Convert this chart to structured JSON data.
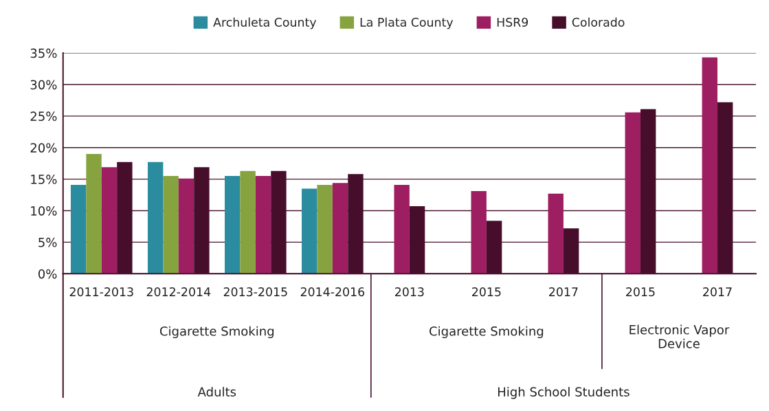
{
  "chart_data": {
    "type": "bar",
    "categories": [
      "2011-2013",
      "2012-2014",
      "2013-2015",
      "2014-2016",
      "2013",
      "2015",
      "2017",
      "2015",
      "2017"
    ],
    "series": [
      {
        "name": "Archuleta County",
        "color": "#2a8c9e",
        "values": [
          14.1,
          17.7,
          15.5,
          13.5,
          null,
          null,
          null,
          null,
          null
        ]
      },
      {
        "name": "La Plata County",
        "color": "#87a340",
        "values": [
          19.0,
          15.5,
          16.3,
          14.1,
          null,
          null,
          null,
          null,
          null
        ]
      },
      {
        "name": "HSR9",
        "color": "#9e1e62",
        "values": [
          16.9,
          15.1,
          15.5,
          14.4,
          14.1,
          13.1,
          12.7,
          25.6,
          34.3
        ]
      },
      {
        "name": "Colorado",
        "color": "#470e2c",
        "values": [
          17.7,
          16.9,
          16.3,
          15.8,
          10.7,
          8.4,
          7.2,
          26.1,
          27.2
        ]
      }
    ],
    "ylim": [
      0,
      35
    ],
    "yticks": [
      {
        "value": 0,
        "label": "0%"
      },
      {
        "value": 5,
        "label": "5%"
      },
      {
        "value": 10,
        "label": "10%"
      },
      {
        "value": 15,
        "label": "15%"
      },
      {
        "value": 20,
        "label": "20%"
      },
      {
        "value": 25,
        "label": "25%"
      },
      {
        "value": 30,
        "label": "30%"
      },
      {
        "value": 35,
        "label": "35%"
      }
    ],
    "grid": "y",
    "legend": "top",
    "annotations": [
      "Cigarette Smoking",
      "Cigarette Smoking",
      "Electronic Vapor\nDevice",
      "Adults",
      "High School Students"
    ]
  }
}
